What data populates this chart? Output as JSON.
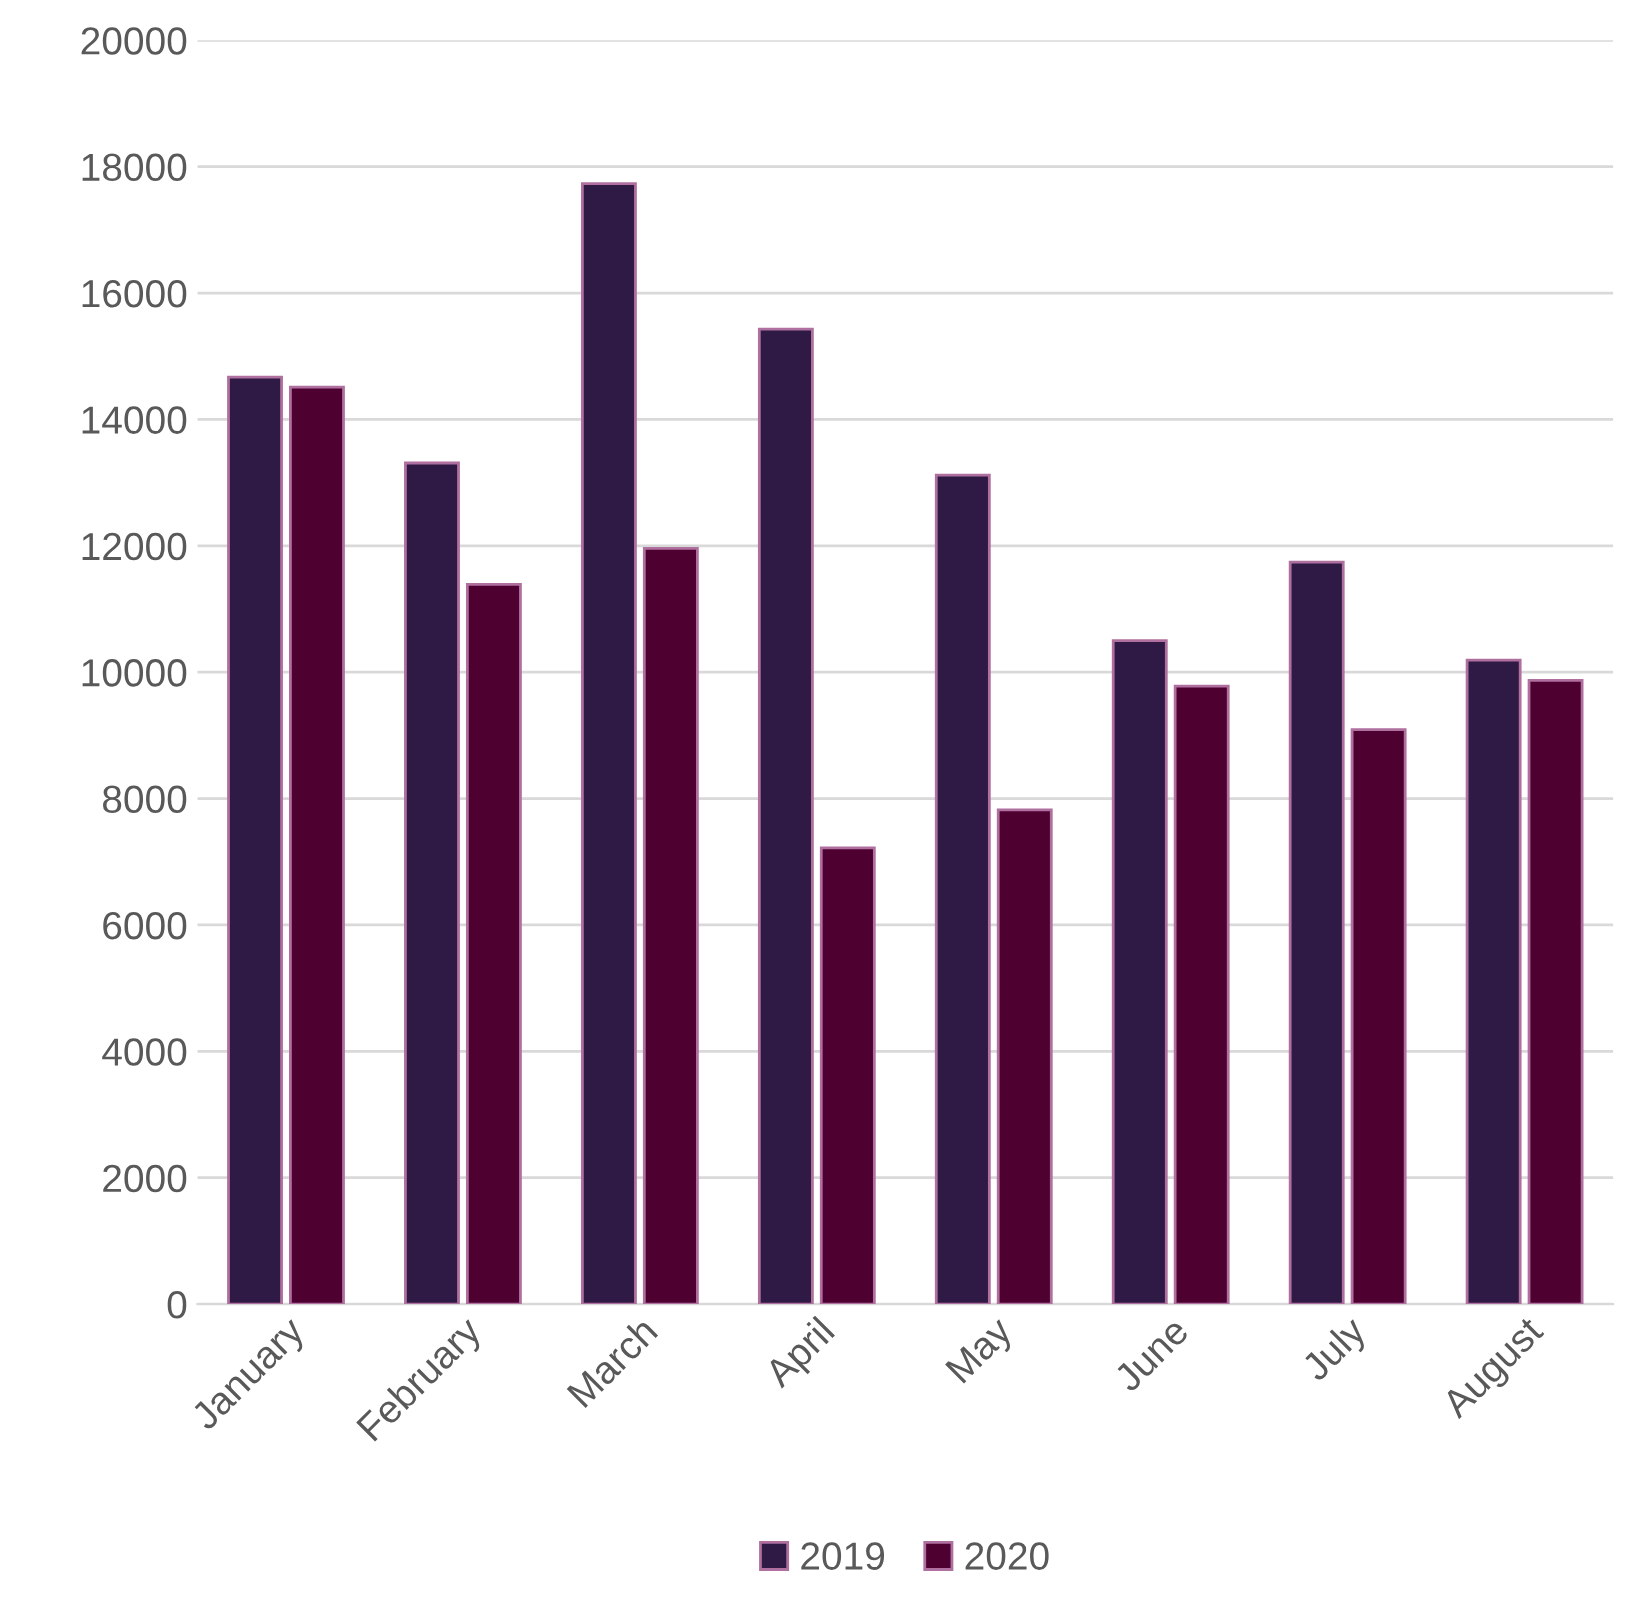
{
  "chart_data": {
    "type": "bar",
    "categories": [
      "January",
      "February",
      "March",
      "April",
      "May",
      "June",
      "July",
      "August"
    ],
    "series": [
      {
        "name": "2019",
        "color": "#2e1a45",
        "values": [
          14670,
          13310,
          17730,
          15430,
          13120,
          10500,
          11740,
          10190
        ]
      },
      {
        "name": "2020",
        "color": "#4e0030",
        "values": [
          14510,
          11390,
          11960,
          7220,
          7820,
          9780,
          9090,
          9870
        ]
      }
    ],
    "ylim": [
      0,
      20000
    ],
    "yticks": [
      0,
      2000,
      4000,
      6000,
      8000,
      10000,
      12000,
      14000,
      16000,
      18000,
      20000
    ],
    "grid": "y",
    "legend": "bottom"
  }
}
